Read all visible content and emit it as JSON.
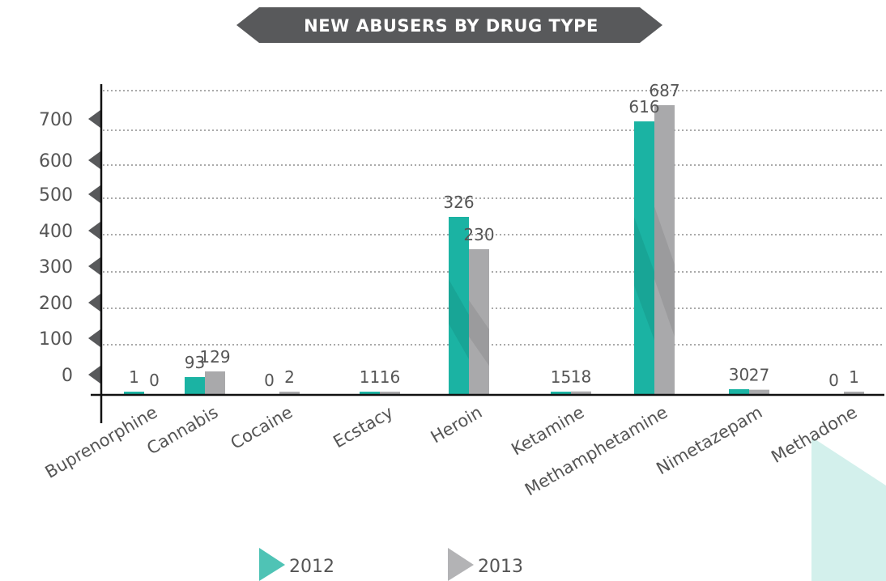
{
  "chart_data": {
    "type": "bar",
    "title": "NEW ABUSERS BY DRUG TYPE",
    "categories": [
      "Buprenorphine",
      "Cannabis",
      "Cocaine",
      "Ecstacy",
      "Heroin",
      "Ketamine",
      "Methamphetamine",
      "Nimetazepam",
      "Methadone"
    ],
    "series": [
      {
        "name": "2012",
        "values": [
          1,
          93,
          0,
          11,
          326,
          15,
          616,
          30,
          0
        ],
        "color": "#1bb3a3"
      },
      {
        "name": "2013",
        "values": [
          0,
          129,
          2,
          16,
          230,
          18,
          687,
          27,
          1
        ],
        "color": "#a9a9ab"
      }
    ],
    "yticks": [
      "0",
      "100",
      "200",
      "300",
      "400",
      "500",
      "600",
      "700"
    ],
    "legend_position": "bottom",
    "grid": true
  }
}
